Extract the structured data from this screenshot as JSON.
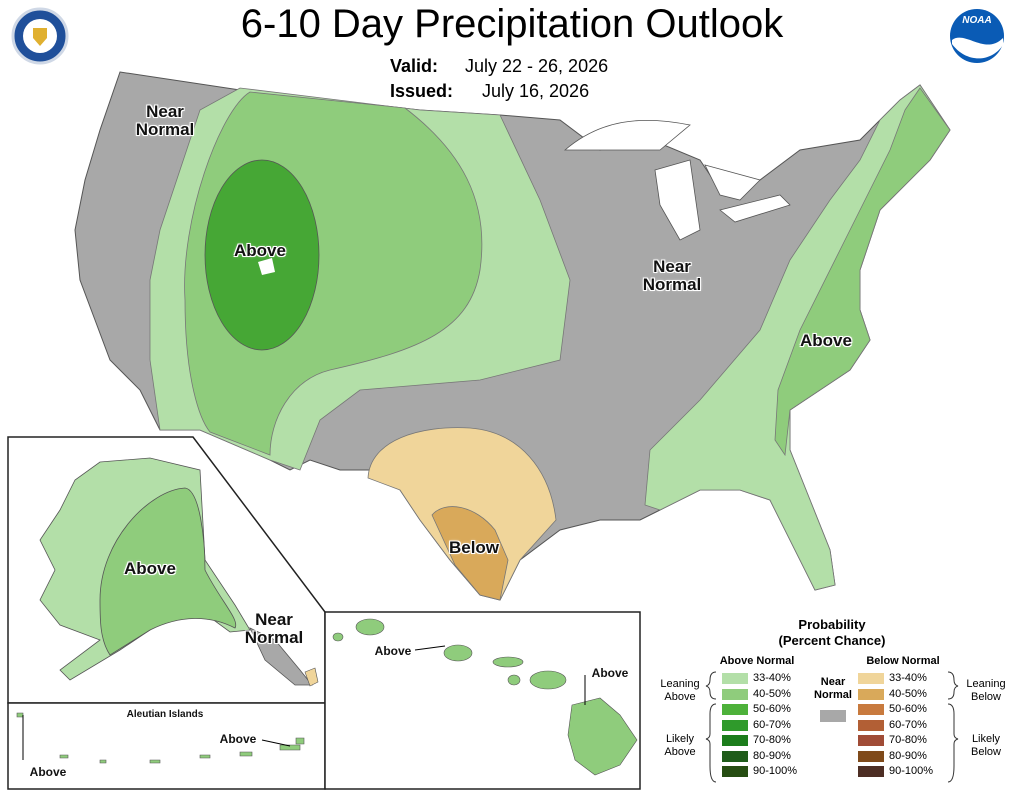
{
  "header": {
    "title": "6-10 Day Precipitation Outlook",
    "valid_label": "Valid:",
    "valid": "July 22 - 26, 2026",
    "issued_label": "Issued:",
    "issued": "July 16, 2026",
    "logo": "NOAA"
  },
  "map_labels": [
    "Near Normal",
    "Above",
    "Near Normal",
    "Above",
    "Below",
    "Above",
    "Near Normal",
    "Above",
    "Above",
    "Above",
    "Above"
  ],
  "aleutian_title": "Aleutian Islands",
  "legend": {
    "title": [
      "Probability",
      "(Percent Chance)"
    ],
    "above": {
      "heading": "Above Normal",
      "groups": [
        "Leaning Above",
        "Likely Above"
      ],
      "rows": [
        {
          "label": "33-40%",
          "color": "#b3dfa8"
        },
        {
          "label": "40-50%",
          "color": "#8fcc7c"
        },
        {
          "label": "50-60%",
          "color": "#4db13a"
        },
        {
          "label": "60-70%",
          "color": "#2f9a2b"
        },
        {
          "label": "70-80%",
          "color": "#1b7d1b"
        },
        {
          "label": "80-90%",
          "color": "#1f5c1a"
        },
        {
          "label": "90-100%",
          "color": "#264d12"
        }
      ]
    },
    "below": {
      "heading": "Below Normal",
      "groups": [
        "Leaning Below",
        "Likely Below"
      ],
      "rows": [
        {
          "label": "33-40%",
          "color": "#f0d59a"
        },
        {
          "label": "40-50%",
          "color": "#d9a95a"
        },
        {
          "label": "50-60%",
          "color": "#c87a3e"
        },
        {
          "label": "60-70%",
          "color": "#b25f35"
        },
        {
          "label": "70-80%",
          "color": "#a04c36"
        },
        {
          "label": "80-90%",
          "color": "#7f4a1a"
        },
        {
          "label": "90-100%",
          "color": "#4d2e24"
        }
      ]
    },
    "near": {
      "label": "Near Normal",
      "color": "#a8a8a8"
    }
  }
}
